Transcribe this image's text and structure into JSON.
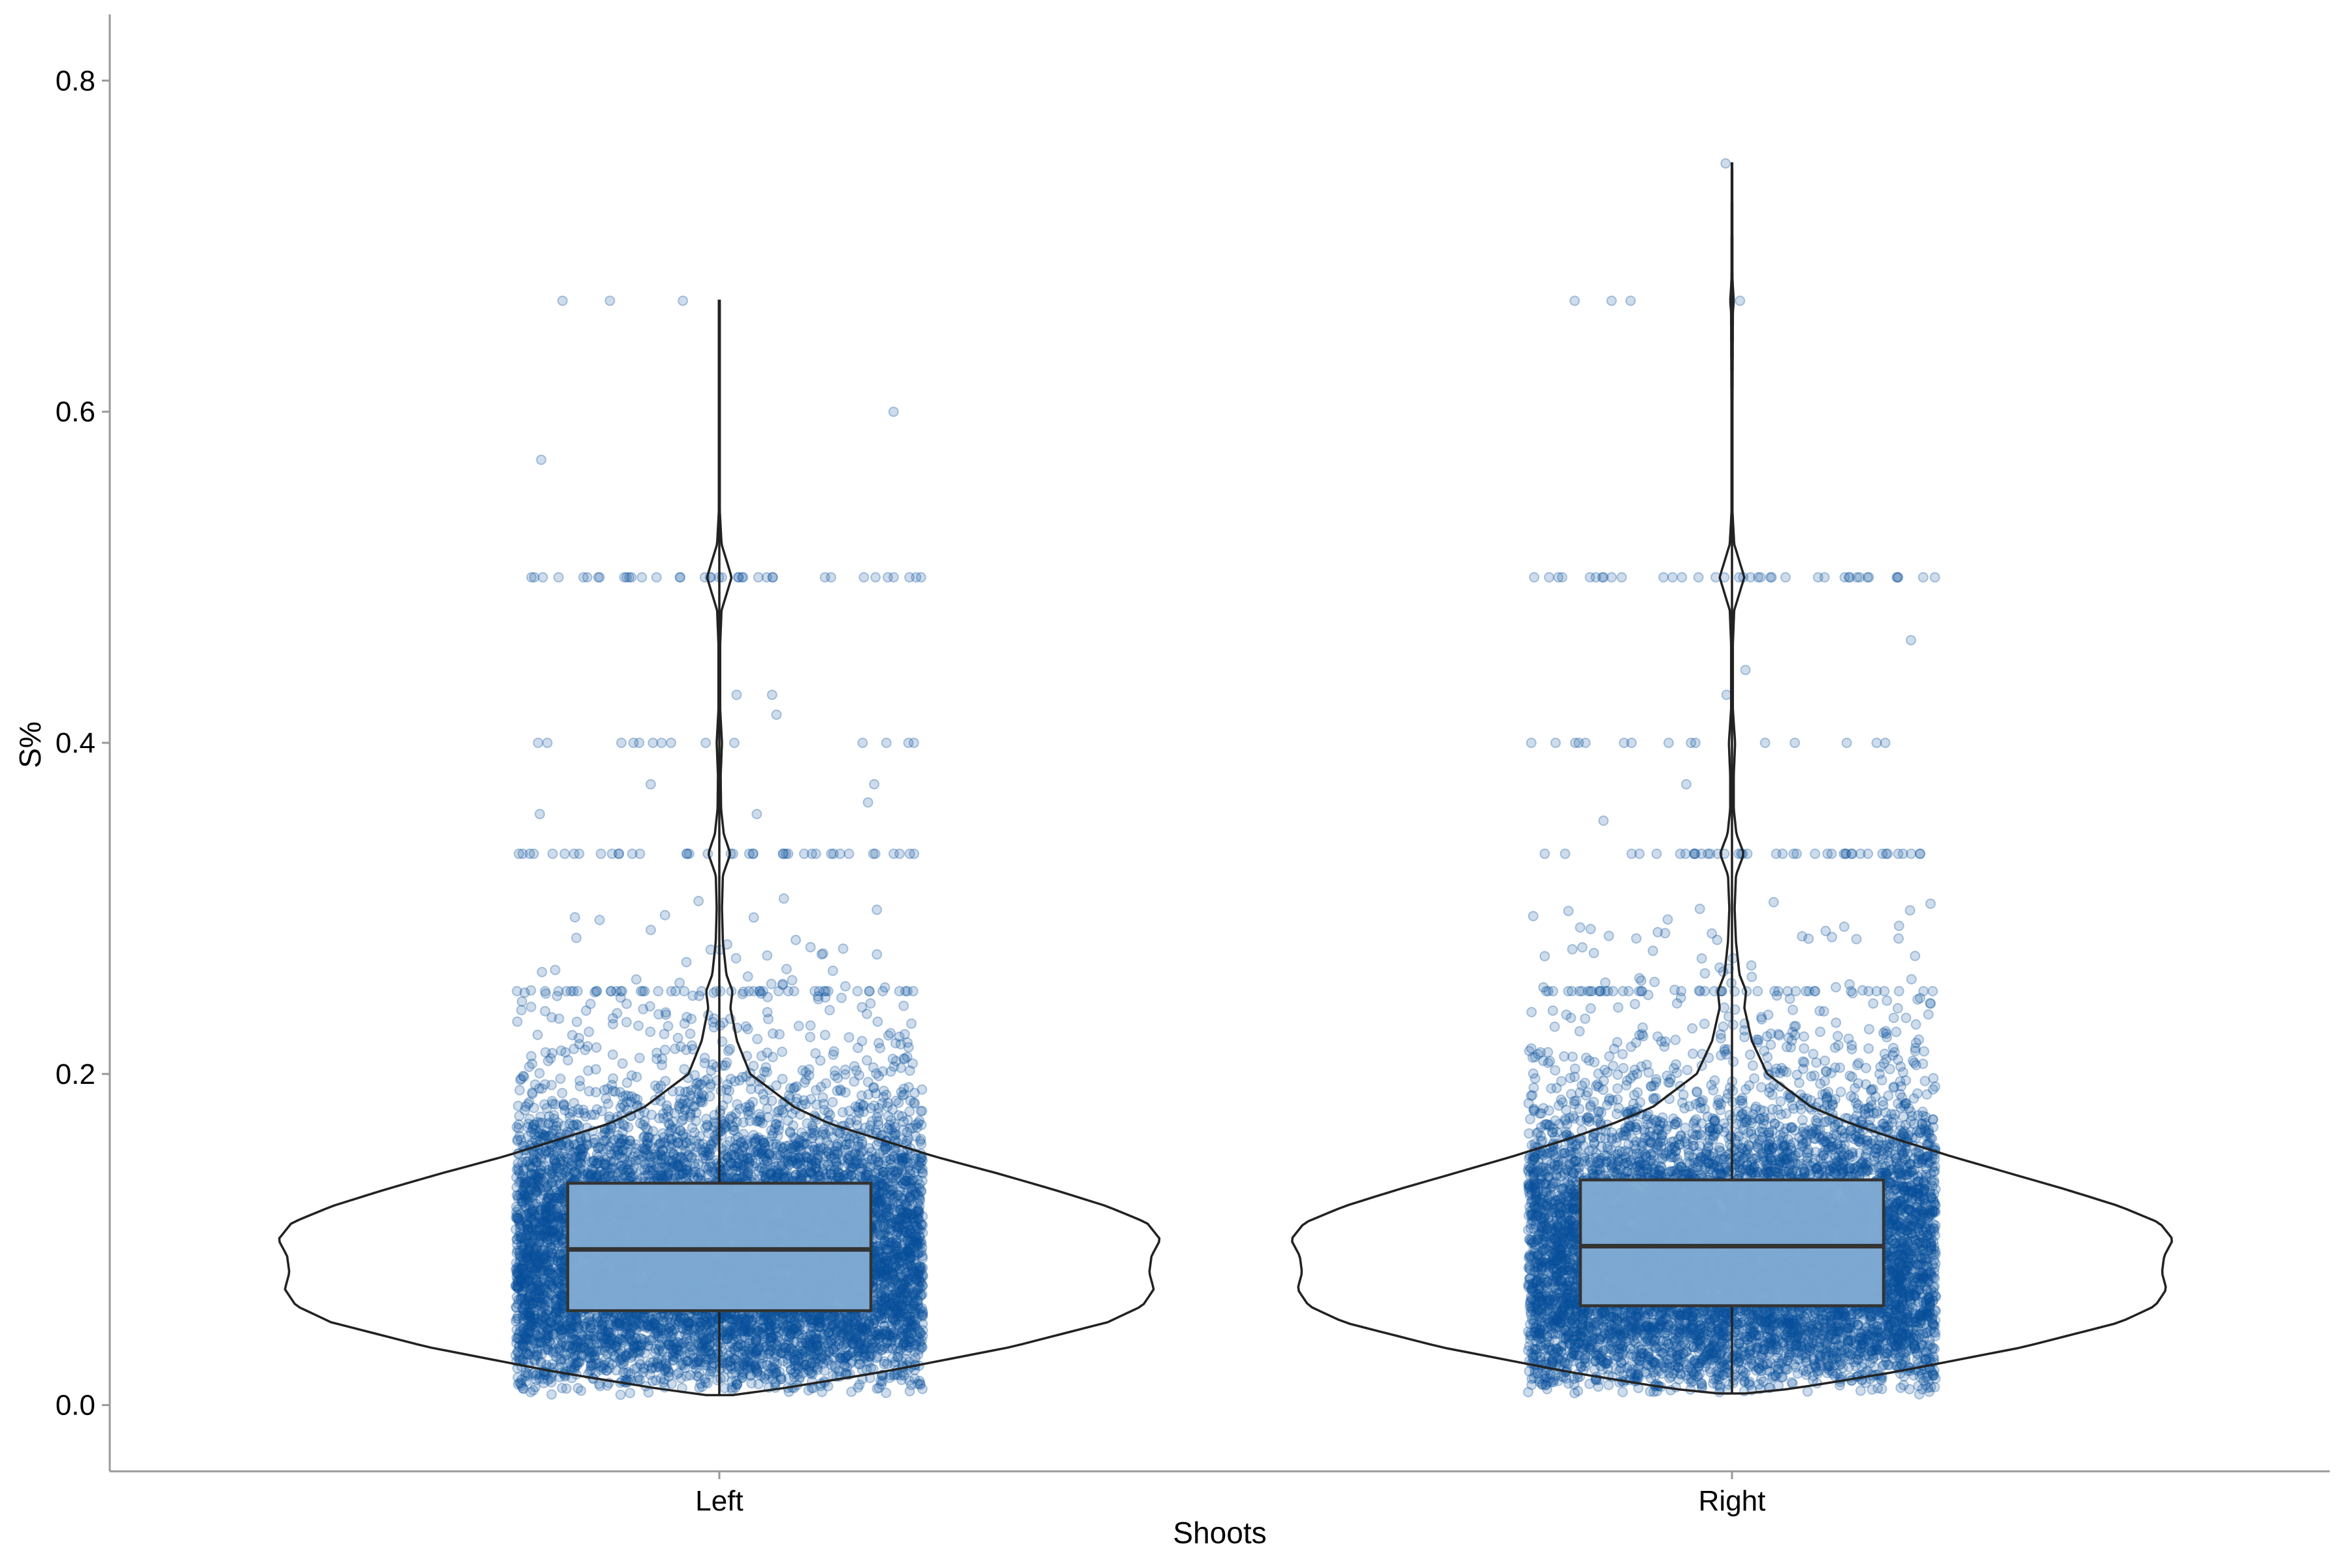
{
  "chart_data": {
    "type": "violin-box-jitter",
    "xlabel": "Shoots",
    "ylabel": "S%",
    "ylim": [
      -0.04,
      0.84
    ],
    "yticks": [
      0.0,
      0.2,
      0.4,
      0.6,
      0.8
    ],
    "ytick_labels": [
      "0.0",
      "0.2",
      "0.4",
      "0.6",
      "0.8"
    ],
    "categories": [
      "Left",
      "Right"
    ],
    "grid": false,
    "legend": "none",
    "colors": {
      "point": "#08519c",
      "box_fill": "#7faad3",
      "outline": "#333333",
      "axis": "#999999"
    },
    "groups": [
      {
        "name": "Left",
        "box": {
          "q1": 0.057,
          "median": 0.094,
          "q3": 0.134,
          "whisker_low": 0.006,
          "whisker_high": 0.667
        },
        "violin_profile": [
          [
            0.006,
            0.03
          ],
          [
            0.01,
            0.14
          ],
          [
            0.02,
            0.37
          ],
          [
            0.035,
            0.66
          ],
          [
            0.05,
            0.88
          ],
          [
            0.06,
            0.96
          ],
          [
            0.07,
            0.985
          ],
          [
            0.08,
            0.975
          ],
          [
            0.09,
            0.98
          ],
          [
            0.1,
            1.0
          ],
          [
            0.11,
            0.97
          ],
          [
            0.12,
            0.88
          ],
          [
            0.13,
            0.76
          ],
          [
            0.14,
            0.63
          ],
          [
            0.15,
            0.49
          ],
          [
            0.16,
            0.37
          ],
          [
            0.17,
            0.25
          ],
          [
            0.18,
            0.17
          ],
          [
            0.2,
            0.07
          ],
          [
            0.22,
            0.04
          ],
          [
            0.24,
            0.025
          ],
          [
            0.25,
            0.03
          ],
          [
            0.26,
            0.016
          ],
          [
            0.28,
            0.008
          ],
          [
            0.3,
            0.006
          ],
          [
            0.32,
            0.008
          ],
          [
            0.333,
            0.025
          ],
          [
            0.345,
            0.01
          ],
          [
            0.36,
            0.004
          ],
          [
            0.38,
            0.003
          ],
          [
            0.4,
            0.006
          ],
          [
            0.42,
            0.002
          ],
          [
            0.46,
            0.002
          ],
          [
            0.48,
            0.005
          ],
          [
            0.5,
            0.028
          ],
          [
            0.52,
            0.005
          ],
          [
            0.54,
            0.001
          ],
          [
            0.6,
            0.001
          ],
          [
            0.667,
            0.001
          ]
        ],
        "discrete_levels": [
          0.25,
          0.333,
          0.4,
          0.5
        ],
        "outliers": [
          0.667,
          0.667,
          0.667,
          0.6,
          0.571,
          0.429,
          0.429,
          0.417,
          0.375,
          0.375,
          0.364,
          0.357,
          0.357
        ]
      },
      {
        "name": "Right",
        "box": {
          "q1": 0.06,
          "median": 0.096,
          "q3": 0.136,
          "whisker_low": 0.007,
          "whisker_high": 0.75
        },
        "violin_profile": [
          [
            0.007,
            0.03
          ],
          [
            0.01,
            0.14
          ],
          [
            0.02,
            0.37
          ],
          [
            0.035,
            0.66
          ],
          [
            0.05,
            0.88
          ],
          [
            0.06,
            0.96
          ],
          [
            0.07,
            0.985
          ],
          [
            0.08,
            0.975
          ],
          [
            0.09,
            0.98
          ],
          [
            0.1,
            1.0
          ],
          [
            0.11,
            0.97
          ],
          [
            0.12,
            0.88
          ],
          [
            0.13,
            0.76
          ],
          [
            0.14,
            0.63
          ],
          [
            0.15,
            0.5
          ],
          [
            0.16,
            0.38
          ],
          [
            0.17,
            0.27
          ],
          [
            0.18,
            0.18
          ],
          [
            0.2,
            0.08
          ],
          [
            0.22,
            0.045
          ],
          [
            0.24,
            0.028
          ],
          [
            0.25,
            0.032
          ],
          [
            0.26,
            0.017
          ],
          [
            0.28,
            0.009
          ],
          [
            0.3,
            0.006
          ],
          [
            0.32,
            0.009
          ],
          [
            0.333,
            0.027
          ],
          [
            0.345,
            0.01
          ],
          [
            0.36,
            0.004
          ],
          [
            0.38,
            0.004
          ],
          [
            0.4,
            0.007
          ],
          [
            0.42,
            0.002
          ],
          [
            0.46,
            0.002
          ],
          [
            0.48,
            0.005
          ],
          [
            0.5,
            0.028
          ],
          [
            0.52,
            0.005
          ],
          [
            0.54,
            0.001
          ],
          [
            0.6,
            0.001
          ],
          [
            0.66,
            0.002
          ],
          [
            0.667,
            0.004
          ],
          [
            0.68,
            0.001
          ],
          [
            0.75,
            0.0005
          ]
        ],
        "discrete_levels": [
          0.25,
          0.333,
          0.4,
          0.5
        ],
        "outliers": [
          0.75,
          0.667,
          0.667,
          0.667,
          0.667,
          0.462,
          0.444,
          0.429,
          0.4,
          0.375,
          0.353,
          0.333
        ]
      }
    ]
  }
}
